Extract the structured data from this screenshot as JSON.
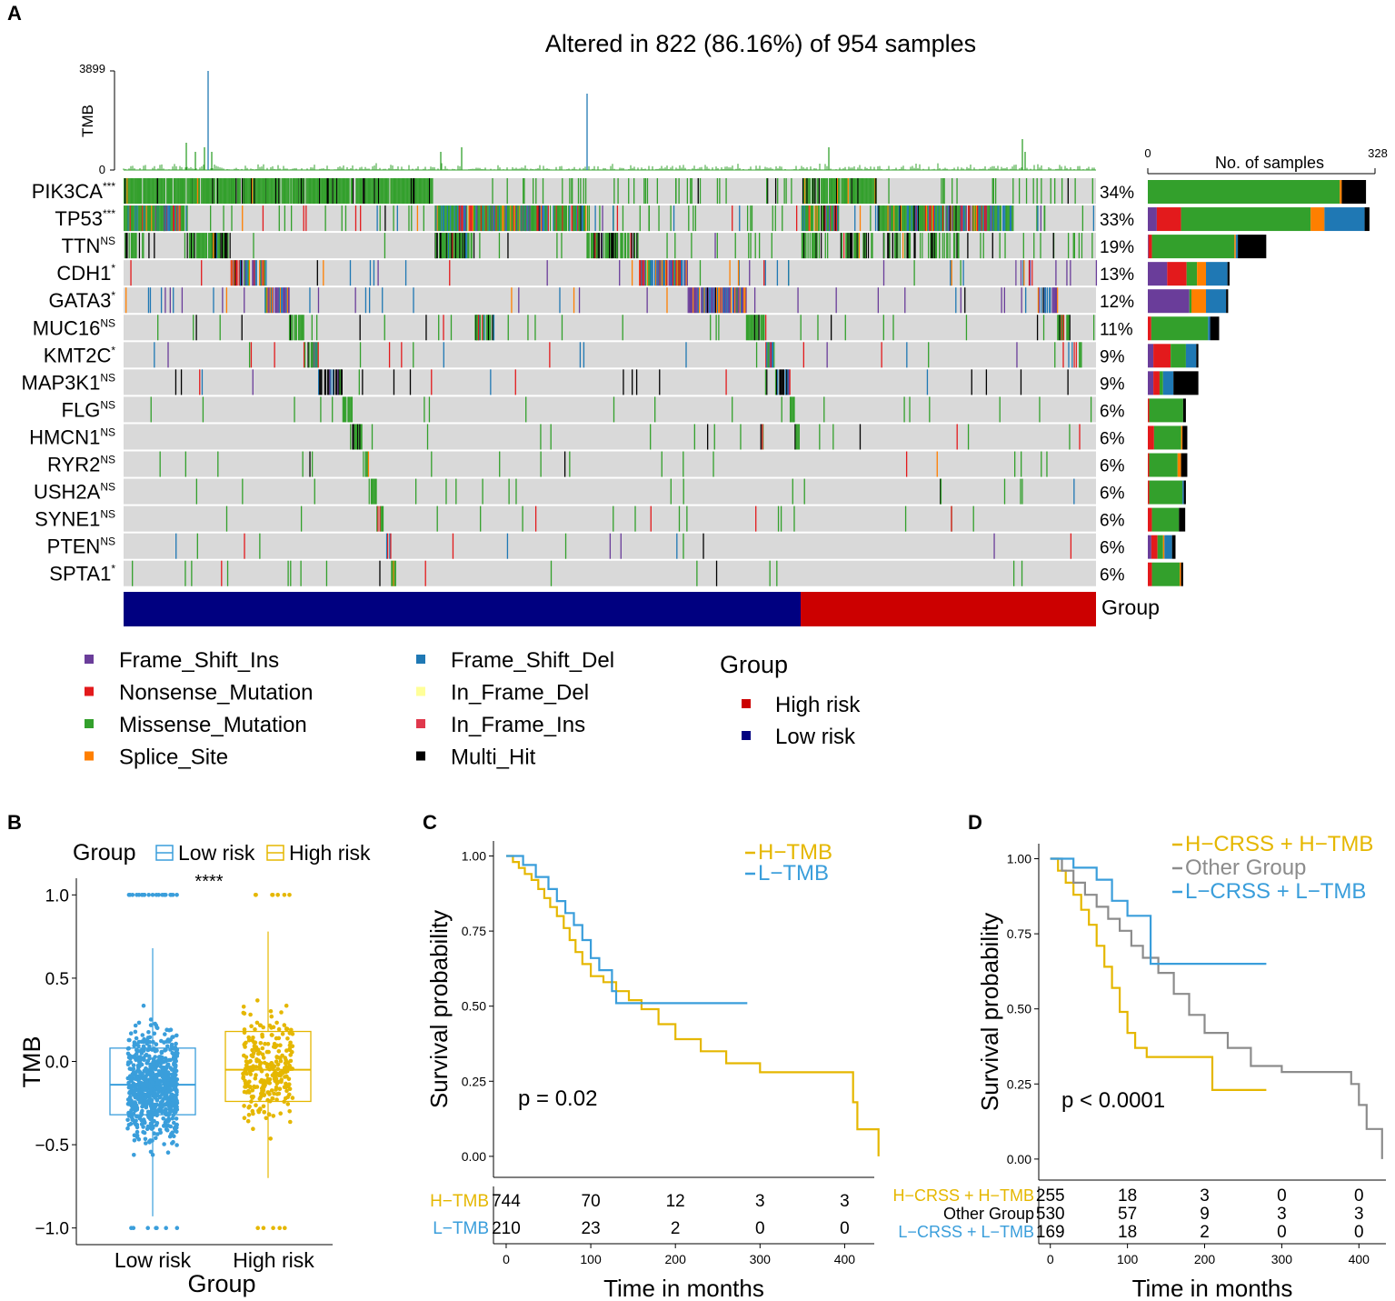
{
  "colors": {
    "frame_shift_ins": "#6A3D9A",
    "frame_shift_del": "#1F78B4",
    "nonsense": "#E31A1C",
    "in_frame_del": "#FFFF99",
    "missense": "#33A02C",
    "in_frame_ins": "#E0384C",
    "splice_site": "#FF7F00",
    "multi_hit": "#000000",
    "high_risk": "#CC0000",
    "low_risk": "#000080",
    "boxplot_low": "#3A9EDB",
    "boxplot_high": "#E5B700",
    "km_htmb": "#E5B700",
    "km_ltmb": "#3A9EDB",
    "km_other": "#8C8C8C"
  },
  "panels": {
    "a": "A",
    "b": "B",
    "c": "C",
    "d": "D"
  },
  "chart_data": [
    {
      "panel": "A",
      "type": "oncoplot",
      "title": "Altered in 822 (86.16%) of 954 samples",
      "tmb_axis": {
        "label": "TMB",
        "max_label": "3899",
        "min_label": "0"
      },
      "samples_axis": {
        "label": "No. of samples",
        "min_label": "0",
        "max_label": "328",
        "max": 328
      },
      "group_label": "Group",
      "group_split_fraction": 0.697,
      "genes": [
        {
          "name": "PIK3CA",
          "sig": "***",
          "pct": "34%",
          "counts": [
            0,
            0,
            0,
            0,
            277,
            3,
            0,
            35
          ]
        },
        {
          "name": "TP53",
          "sig": "***",
          "pct": "33%",
          "counts": [
            13,
            35,
            0,
            0,
            187,
            20,
            58,
            7
          ]
        },
        {
          "name": "TTN",
          "sig": "NS",
          "pct": "19%",
          "counts": [
            1,
            5,
            0,
            0,
            119,
            2,
            3,
            41
          ]
        },
        {
          "name": "CDH1",
          "sig": "*",
          "pct": "13%",
          "counts": [
            28,
            28,
            0,
            0,
            15,
            13,
            31,
            3
          ]
        },
        {
          "name": "GATA3",
          "sig": "*",
          "pct": "12%",
          "counts": [
            60,
            0,
            0,
            0,
            3,
            21,
            29,
            3
          ]
        },
        {
          "name": "MUC16",
          "sig": "NS",
          "pct": "11%",
          "counts": [
            0,
            5,
            0,
            0,
            82,
            0,
            3,
            13
          ]
        },
        {
          "name": "KMT2C",
          "sig": "*",
          "pct": "9%",
          "counts": [
            8,
            25,
            0,
            0,
            22,
            0,
            15,
            3
          ]
        },
        {
          "name": "MAP3K1",
          "sig": "NS",
          "pct": "9%",
          "counts": [
            8,
            9,
            0,
            0,
            5,
            0,
            15,
            36
          ]
        },
        {
          "name": "FLG",
          "sig": "NS",
          "pct": "6%",
          "counts": [
            0,
            2,
            0,
            0,
            49,
            0,
            0,
            4
          ]
        },
        {
          "name": "HMCN1",
          "sig": "NS",
          "pct": "6%",
          "counts": [
            0,
            9,
            0,
            0,
            39,
            2,
            0,
            7
          ]
        },
        {
          "name": "RYR2",
          "sig": "NS",
          "pct": "6%",
          "counts": [
            0,
            2,
            0,
            0,
            41,
            5,
            0,
            9
          ]
        },
        {
          "name": "USH2A",
          "sig": "NS",
          "pct": "6%",
          "counts": [
            0,
            2,
            0,
            0,
            48,
            0,
            2,
            3
          ]
        },
        {
          "name": "SYNE1",
          "sig": "NS",
          "pct": "6%",
          "counts": [
            0,
            6,
            0,
            0,
            39,
            0,
            0,
            9
          ]
        },
        {
          "name": "PTEN",
          "sig": "NS",
          "pct": "6%",
          "counts": [
            5,
            9,
            0,
            0,
            8,
            2,
            11,
            5
          ]
        },
        {
          "name": "SPTA1",
          "sig": "*",
          "pct": "6%",
          "counts": [
            0,
            6,
            0,
            0,
            40,
            2,
            0,
            3
          ]
        }
      ],
      "legend": {
        "types": [
          {
            "key": "frame_shift_ins",
            "label": "Frame_Shift_Ins"
          },
          {
            "key": "nonsense",
            "label": "Nonsense_Mutation"
          },
          {
            "key": "missense",
            "label": "Missense_Mutation"
          },
          {
            "key": "splice_site",
            "label": "Splice_Site"
          },
          {
            "key": "frame_shift_del",
            "label": "Frame_Shift_Del"
          },
          {
            "key": "in_frame_del",
            "label": "In_Frame_Del"
          },
          {
            "key": "in_frame_ins",
            "label": "In_Frame_Ins"
          },
          {
            "key": "multi_hit",
            "label": "Multi_Hit"
          }
        ],
        "group_title": "Group",
        "groups": [
          {
            "key": "high_risk",
            "label": "High risk"
          },
          {
            "key": "low_risk",
            "label": "Low risk"
          }
        ]
      }
    },
    {
      "panel": "B",
      "type": "box",
      "legend_title": "Group",
      "legend_items": [
        "Low risk",
        "High risk"
      ],
      "significance": "****",
      "xlabel": "Group",
      "ylabel": "TMB",
      "categories": [
        "Low risk",
        "High risk"
      ],
      "ylim": [
        -1.1,
        1.1
      ],
      "yticks": [
        1.0,
        0.5,
        0.0,
        -0.5,
        -1.0
      ],
      "ytick_labels": [
        "1.0",
        "0.5",
        "0.0",
        "−0.5",
        "−1.0"
      ],
      "boxes": [
        {
          "name": "Low risk",
          "q1": -0.32,
          "median": -0.14,
          "q3": 0.08,
          "whisker_low": -0.93,
          "whisker_high": 0.68,
          "n_points": 750
        },
        {
          "name": "High risk",
          "q1": -0.24,
          "median": -0.05,
          "q3": 0.18,
          "whisker_low": -0.7,
          "whisker_high": 0.78,
          "n_points": 290
        }
      ]
    },
    {
      "panel": "C",
      "type": "line",
      "subtype": "kaplan-meier",
      "xlabel": "Time in months",
      "ylabel": "Survival probability",
      "xlim": [
        -15,
        435
      ],
      "ylim": [
        -0.07,
        1.05
      ],
      "xticks": [
        0,
        100,
        200,
        300,
        400
      ],
      "yticks": [
        "0.00",
        "0.25",
        "0.50",
        "0.75",
        "1.00"
      ],
      "pvalue": "p = 0.02",
      "series": [
        {
          "name": "H−TMB",
          "color_key": "km_htmb",
          "x": [
            0,
            8,
            15,
            22,
            30,
            38,
            45,
            52,
            60,
            68,
            75,
            82,
            90,
            100,
            115,
            130,
            145,
            160,
            180,
            200,
            230,
            260,
            300,
            350,
            405,
            410,
            415,
            440
          ],
          "y": [
            1.0,
            0.98,
            0.96,
            0.94,
            0.92,
            0.89,
            0.86,
            0.83,
            0.8,
            0.76,
            0.72,
            0.68,
            0.64,
            0.6,
            0.58,
            0.55,
            0.52,
            0.49,
            0.44,
            0.39,
            0.35,
            0.31,
            0.28,
            0.28,
            0.28,
            0.18,
            0.09,
            0.0
          ]
        },
        {
          "name": "L−TMB",
          "color_key": "km_ltmb",
          "x": [
            0,
            20,
            35,
            50,
            60,
            70,
            80,
            90,
            100,
            110,
            125,
            130,
            170,
            285
          ],
          "y": [
            1.0,
            0.97,
            0.93,
            0.89,
            0.85,
            0.81,
            0.77,
            0.72,
            0.66,
            0.62,
            0.55,
            0.51,
            0.51,
            0.51
          ]
        }
      ],
      "risk_table": {
        "rows": [
          {
            "label": "H−TMB",
            "color_key": "km_htmb",
            "values": [
              "744",
              "70",
              "12",
              "3",
              "3"
            ]
          },
          {
            "label": "L−TMB",
            "color_key": "km_ltmb",
            "values": [
              "210",
              "23",
              "2",
              "0",
              "0"
            ]
          }
        ],
        "x": [
          0,
          100,
          200,
          300,
          400
        ]
      }
    },
    {
      "panel": "D",
      "type": "line",
      "subtype": "kaplan-meier",
      "xlabel": "Time in months",
      "ylabel": "Survival probability",
      "xlim": [
        -15,
        435
      ],
      "ylim": [
        -0.07,
        1.05
      ],
      "xticks": [
        0,
        100,
        200,
        300,
        400
      ],
      "yticks": [
        "0.00",
        "0.25",
        "0.50",
        "0.75",
        "1.00"
      ],
      "pvalue": "p < 0.0001",
      "series": [
        {
          "name": "H−CRSS + H−TMB",
          "color_key": "km_htmb",
          "x": [
            0,
            10,
            20,
            30,
            40,
            50,
            60,
            70,
            80,
            90,
            100,
            110,
            125,
            150,
            180,
            210,
            280
          ],
          "y": [
            1.0,
            0.96,
            0.92,
            0.88,
            0.83,
            0.78,
            0.71,
            0.64,
            0.57,
            0.49,
            0.42,
            0.37,
            0.34,
            0.34,
            0.34,
            0.23,
            0.23
          ]
        },
        {
          "name": "Other Group",
          "color_key": "km_other",
          "x": [
            0,
            15,
            30,
            45,
            60,
            75,
            90,
            105,
            120,
            140,
            160,
            180,
            200,
            230,
            260,
            300,
            360,
            390,
            400,
            410,
            430
          ],
          "y": [
            1.0,
            0.96,
            0.92,
            0.88,
            0.84,
            0.8,
            0.76,
            0.71,
            0.67,
            0.62,
            0.55,
            0.48,
            0.42,
            0.37,
            0.31,
            0.29,
            0.29,
            0.25,
            0.18,
            0.1,
            0.0
          ]
        },
        {
          "name": "L−CRSS + L−TMB",
          "color_key": "km_ltmb",
          "x": [
            0,
            30,
            60,
            80,
            100,
            130,
            135,
            200,
            280
          ],
          "y": [
            1.0,
            0.97,
            0.93,
            0.86,
            0.81,
            0.65,
            0.65,
            0.65,
            0.65
          ]
        }
      ],
      "risk_table": {
        "rows": [
          {
            "label": "H−CRSS + H−TMB",
            "color_key": "km_htmb",
            "values": [
              "255",
              "18",
              "3",
              "0",
              "0"
            ]
          },
          {
            "label": "Other Group",
            "color_key": "km_other_label",
            "values": [
              "530",
              "57",
              "9",
              "3",
              "3"
            ]
          },
          {
            "label": "L−CRSS + L−TMB",
            "color_key": "km_ltmb",
            "values": [
              "169",
              "18",
              "2",
              "0",
              "0"
            ]
          }
        ],
        "x": [
          0,
          100,
          200,
          300,
          400
        ]
      }
    }
  ]
}
